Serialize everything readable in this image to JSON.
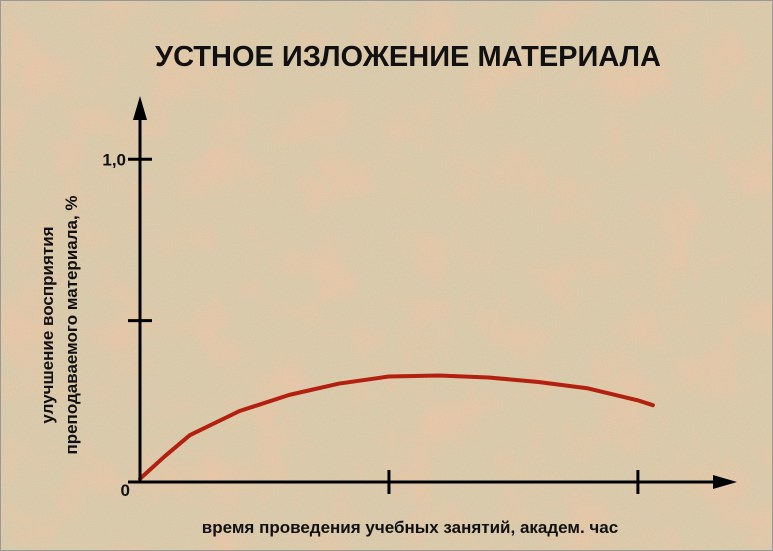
{
  "chart_data": {
    "type": "line",
    "title": "УСТНОЕ ИЗЛОЖЕНИЕ МАТЕРИАЛА",
    "y_label": [
      "улучшение восприятия",
      "преподаваемого материала, %"
    ],
    "x_label": "время проведения учебных занятий, академ. час",
    "x": [
      0,
      0.1,
      0.2,
      0.4,
      0.6,
      0.8,
      1.0,
      1.2,
      1.4,
      1.6,
      1.8,
      2.0,
      2.06
    ],
    "series": [
      {
        "color": "#b3200f",
        "values": [
          0.01,
          0.08,
          0.145,
          0.22,
          0.27,
          0.305,
          0.327,
          0.33,
          0.324,
          0.31,
          0.29,
          0.253,
          0.238
        ]
      }
    ],
    "xlim": [
      0,
      2.39
    ],
    "ylim": [
      0,
      1.19
    ],
    "xticks": [
      {
        "value": 1,
        "label": null
      },
      {
        "value": 2,
        "label": null
      }
    ],
    "yticks": [
      0,
      {
        "value": 0.5,
        "label": null
      },
      {
        "value": 1,
        "label": "1,0"
      }
    ]
  }
}
